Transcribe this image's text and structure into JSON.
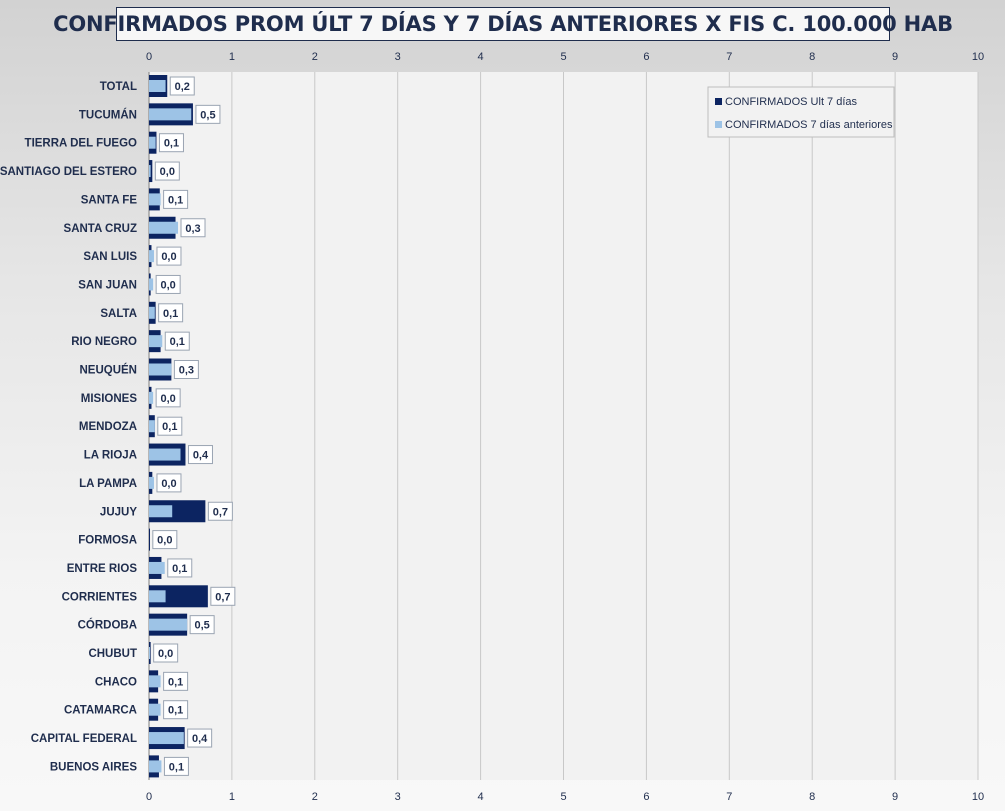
{
  "chart_data": {
    "type": "bar",
    "orientation": "horizontal",
    "title": "CONFIRMADOS PROM ÚLT 7 DÍAS Y 7 DÍAS ANTERIORES X FIS C. 100.000 HAB",
    "xlim": [
      0,
      10
    ],
    "xticks": [
      0,
      1,
      2,
      3,
      4,
      5,
      6,
      7,
      8,
      9,
      10
    ],
    "grid": "vertical",
    "legend_position": "top-right",
    "categories": [
      "TOTAL",
      "TUCUMÁN",
      "TIERRA  DEL FUEGO",
      "SANTIAGO  DEL ESTERO",
      "SANTA FE",
      "SANTA CRUZ",
      "SAN LUIS",
      "SAN JUAN",
      "SALTA",
      "RIO NEGRO",
      "NEUQUÉN",
      "MISIONES",
      "MENDOZA",
      "LA RIOJA",
      "LA PAMPA",
      "JUJUY",
      "FORMOSA",
      "ENTRE RIOS",
      "CORRIENTES",
      "CÓRDOBA",
      "CHUBUT",
      "CHACO",
      "CATAMARCA",
      "CAPITAL FEDERAL",
      "BUENOS  AIRES"
    ],
    "series": [
      {
        "name": "CONFIRMADOS Ult 7 días",
        "color": "#0c2461",
        "values": [
          0.22,
          0.53,
          0.09,
          0.04,
          0.13,
          0.32,
          0.03,
          0.02,
          0.08,
          0.14,
          0.27,
          0.03,
          0.07,
          0.44,
          0.04,
          0.68,
          0.01,
          0.15,
          0.71,
          0.46,
          0.02,
          0.11,
          0.11,
          0.43,
          0.12
        ]
      },
      {
        "name": "CONFIRMADOS 7 días anteriores",
        "color": "#9dc3e6",
        "values": [
          0.2,
          0.51,
          0.08,
          0.02,
          0.14,
          0.35,
          0.06,
          0.05,
          0.07,
          0.16,
          0.27,
          0.05,
          0.07,
          0.38,
          0.06,
          0.28,
          0.0,
          0.19,
          0.2,
          0.46,
          0.01,
          0.14,
          0.14,
          0.42,
          0.15
        ]
      }
    ],
    "data_labels": [
      "0,2",
      "0,5",
      "0,1",
      "0,0",
      "0,1",
      "0,3",
      "0,0",
      "0,0",
      "0,1",
      "0,1",
      "0,3",
      "0,0",
      "0,1",
      "0,4",
      "0,0",
      "0,7",
      "0,0",
      "0,1",
      "0,7",
      "0,5",
      "0,0",
      "0,1",
      "0,1",
      "0,4",
      "0,1"
    ]
  }
}
